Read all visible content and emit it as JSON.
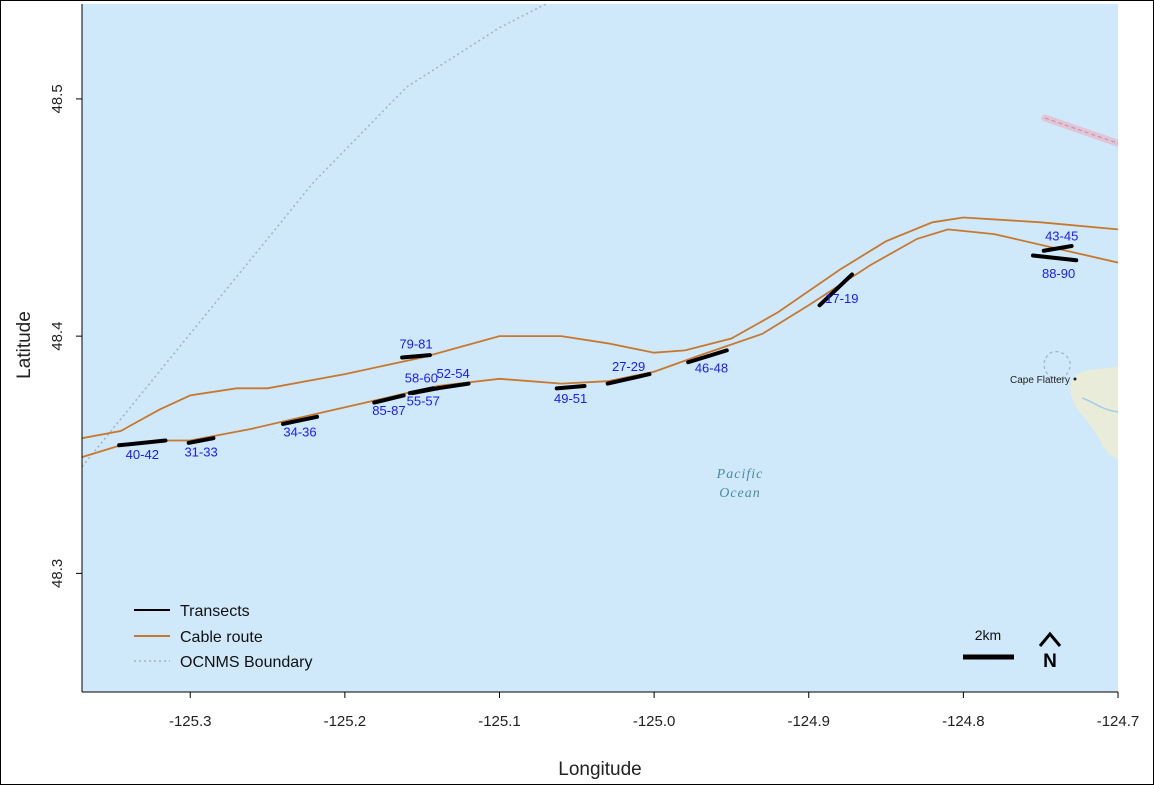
{
  "map": {
    "colors": {
      "water": "#cfe9fa",
      "land": "#e8ecd8",
      "cable": "#c8782e",
      "transect": "#000000",
      "boundary": "#a9b3bd",
      "label_blue": "#1a1aff",
      "ocean_label": "#4f8aa3",
      "restricted_zone": "#e7b7c6"
    },
    "extent": {
      "lon": [
        -125.37,
        -124.7
      ],
      "lat": [
        48.25,
        48.54
      ]
    },
    "xlabel": "Longitude",
    "ylabel": "Latitude",
    "xticks": [
      -125.3,
      -125.2,
      -125.1,
      -125.0,
      -124.9,
      -124.8,
      -124.7
    ],
    "xtick_labels": [
      "-125.3",
      "-125.2",
      "-125.1",
      "-125.0",
      "-124.9",
      "-124.8",
      "-124.7"
    ],
    "yticks": [
      48.3,
      48.4,
      48.5
    ],
    "ytick_labels": [
      "48.3",
      "48.4",
      "48.5"
    ],
    "legend": {
      "position": "bottom-left",
      "entries": [
        {
          "label": "Transects",
          "style": "solid-black"
        },
        {
          "label": "Cable route",
          "style": "solid-orange"
        },
        {
          "label": "OCNMS Boundary",
          "style": "dotted-grey"
        }
      ]
    },
    "scale_bar_label": "2km",
    "north_arrow_label": "N",
    "ocean_label_line1": "Pacific",
    "ocean_label_line2": "Ocean",
    "place_name": "Cape Flattery",
    "transects": [
      {
        "label": "40-42",
        "lon": [
          -125.346,
          -125.316
        ],
        "lat": [
          48.354,
          48.356
        ]
      },
      {
        "label": "31-33",
        "lon": [
          -125.301,
          -125.285
        ],
        "lat": [
          48.355,
          48.357
        ]
      },
      {
        "label": "34-36",
        "lon": [
          -125.24,
          -125.218
        ],
        "lat": [
          48.363,
          48.366
        ]
      },
      {
        "label": "85-87",
        "lon": [
          -125.181,
          -125.162
        ],
        "lat": [
          48.372,
          48.375
        ]
      },
      {
        "label": "58-60",
        "lon": [
          -125.158,
          -125.143
        ],
        "lat": [
          48.376,
          48.378
        ]
      },
      {
        "label": "52-54",
        "lon": [
          -125.14,
          -125.12
        ],
        "lat": [
          48.378,
          48.38
        ]
      },
      {
        "label": "55-57",
        "lon": [
          -125.156,
          -125.14
        ],
        "lat": [
          48.376,
          48.378
        ]
      },
      {
        "label": "79-81",
        "lon": [
          -125.163,
          -125.145
        ],
        "lat": [
          48.391,
          48.392
        ]
      },
      {
        "label": "49-51",
        "lon": [
          -125.063,
          -125.045
        ],
        "lat": [
          48.378,
          48.379
        ]
      },
      {
        "label": "27-29",
        "lon": [
          -125.03,
          -125.003
        ],
        "lat": [
          48.38,
          48.384
        ]
      },
      {
        "label": "46-48",
        "lon": [
          -124.978,
          -124.953
        ],
        "lat": [
          48.389,
          48.394
        ]
      },
      {
        "label": "17-19",
        "lon": [
          -124.893,
          -124.872
        ],
        "lat": [
          48.413,
          48.426
        ]
      },
      {
        "label": "43-45",
        "lon": [
          -124.748,
          -124.73
        ],
        "lat": [
          48.436,
          48.438
        ]
      },
      {
        "label": "88-90",
        "lon": [
          -124.755,
          -124.727
        ],
        "lat": [
          48.434,
          48.432
        ]
      }
    ],
    "cable_route_north": [
      [
        -125.37,
        48.357
      ],
      [
        -125.345,
        48.36
      ],
      [
        -125.32,
        48.369
      ],
      [
        -125.3,
        48.375
      ],
      [
        -125.27,
        48.378
      ],
      [
        -125.25,
        48.378
      ],
      [
        -125.2,
        48.384
      ],
      [
        -125.15,
        48.391
      ],
      [
        -125.1,
        48.4
      ],
      [
        -125.06,
        48.4
      ],
      [
        -125.03,
        48.397
      ],
      [
        -125.0,
        48.393
      ],
      [
        -124.98,
        48.394
      ],
      [
        -124.95,
        48.399
      ],
      [
        -124.92,
        48.41
      ],
      [
        -124.88,
        48.428
      ],
      [
        -124.85,
        48.44
      ],
      [
        -124.82,
        48.448
      ],
      [
        -124.8,
        48.45
      ],
      [
        -124.75,
        48.448
      ],
      [
        -124.7,
        48.445
      ]
    ],
    "cable_route_south": [
      [
        -125.37,
        48.349
      ],
      [
        -125.345,
        48.354
      ],
      [
        -125.32,
        48.356
      ],
      [
        -125.3,
        48.356
      ],
      [
        -125.26,
        48.361
      ],
      [
        -125.22,
        48.367
      ],
      [
        -125.18,
        48.373
      ],
      [
        -125.14,
        48.379
      ],
      [
        -125.1,
        48.382
      ],
      [
        -125.06,
        48.38
      ],
      [
        -125.03,
        48.381
      ],
      [
        -125.0,
        48.385
      ],
      [
        -124.97,
        48.392
      ],
      [
        -124.93,
        48.401
      ],
      [
        -124.9,
        48.413
      ],
      [
        -124.86,
        48.43
      ],
      [
        -124.83,
        48.441
      ],
      [
        -124.81,
        48.445
      ],
      [
        -124.78,
        48.443
      ],
      [
        -124.74,
        48.437
      ],
      [
        -124.7,
        48.431
      ]
    ],
    "ocnms_boundary": [
      [
        -125.37,
        48.345
      ],
      [
        -125.32,
        48.385
      ],
      [
        -125.27,
        48.425
      ],
      [
        -125.22,
        48.465
      ],
      [
        -125.16,
        48.505
      ],
      [
        -125.1,
        48.53
      ],
      [
        -125.04,
        48.55
      ],
      [
        -124.98,
        48.567
      ],
      [
        -124.92,
        48.571
      ],
      [
        -124.87,
        48.574
      ],
      [
        -124.84,
        48.575
      ],
      [
        -124.78,
        48.571
      ],
      [
        -124.74,
        48.563
      ],
      [
        -124.7,
        48.552
      ]
    ]
  }
}
